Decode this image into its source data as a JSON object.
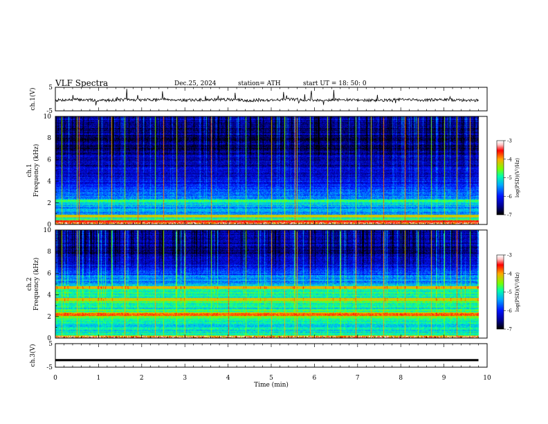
{
  "header": {
    "title": "VLF  Spectra",
    "date": "Dec.25, 2024",
    "station": "station= ATH",
    "start": "start  UT  =   18: 50: 0"
  },
  "colors": {
    "background": "#ffffff",
    "axis": "#000000",
    "trace": "#000000",
    "colormap": [
      "#000000",
      "#0000aa",
      "#0000ff",
      "#00aaff",
      "#00ffaa",
      "#aaff00",
      "#ffaa00",
      "#ff0000",
      "#ffdddd",
      "#ffffff"
    ]
  },
  "chart_data": [
    {
      "type": "line",
      "name": "ch1-voltage",
      "ylabel": "ch.1(V)",
      "ylim": [
        -5,
        5
      ],
      "yticks": [
        "5",
        "-5"
      ],
      "xlim": [
        0,
        10
      ],
      "x": [
        0,
        0.5,
        1,
        1.5,
        2,
        2.5,
        3,
        3.5,
        4,
        4.5,
        5,
        5.5,
        6,
        6.5,
        7,
        7.5,
        8,
        8.5,
        9,
        9.5,
        9.8
      ],
      "y": [
        -0.5,
        -0.2,
        -0.6,
        -0.3,
        -0.4,
        0.0,
        -0.5,
        -0.3,
        -0.2,
        -0.6,
        -0.4,
        -0.1,
        -0.5,
        -0.3,
        -0.4,
        -0.6,
        -0.2,
        -0.4,
        -0.3,
        -0.5,
        -0.6
      ]
    },
    {
      "type": "heatmap",
      "name": "ch1-spectrogram",
      "ylabel": "ch.1\nFrequency (kHz)",
      "ylim": [
        0,
        10
      ],
      "yticks": [
        "0",
        "2",
        "4",
        "6",
        "8",
        "10"
      ],
      "xlim": [
        0,
        10
      ],
      "data_xmax": 9.8,
      "colorbar": {
        "label": "log(PSD)(V²/Hz)",
        "range": [
          -7,
          -3
        ],
        "ticks": [
          "-3",
          "-4",
          "-5",
          "-6",
          "-7"
        ]
      },
      "freq_profile_kHz": [
        0,
        0.5,
        1,
        1.5,
        2,
        2.2,
        2.5,
        3,
        3.5,
        4,
        4.5,
        5,
        6,
        7,
        8,
        9,
        10
      ],
      "freq_profile_logpsd": [
        -3.8,
        -4.8,
        -5.4,
        -5.6,
        -5.0,
        -4.9,
        -5.6,
        -5.8,
        -5.9,
        -6.1,
        -6.3,
        -6.2,
        -6.4,
        -6.6,
        -6.7,
        -6.5,
        -6.4
      ],
      "bands_kHz": [
        {
          "f": 2.2,
          "v": -4.9
        },
        {
          "f": 0.8,
          "v": -4.2
        },
        {
          "f": 0.3,
          "v": -3.6
        }
      ],
      "sferics_min": [
        0.15,
        0.5,
        0.55,
        1.0,
        1.3,
        1.6,
        1.9,
        2.3,
        2.5,
        2.8,
        3.0,
        3.6,
        4.0,
        4.4,
        4.7,
        5.0,
        5.3,
        5.55,
        5.6,
        5.9,
        6.3,
        6.6,
        6.95,
        7.3,
        7.6,
        8.1,
        8.4,
        8.7,
        9.0,
        9.3,
        9.6
      ]
    },
    {
      "type": "heatmap",
      "name": "ch2-spectrogram",
      "ylabel": "ch.2\nFrequency (kHz)",
      "ylim": [
        0,
        10
      ],
      "yticks": [
        "0",
        "2",
        "4",
        "6",
        "8",
        "10"
      ],
      "xlim": [
        0,
        10
      ],
      "data_xmax": 9.8,
      "colorbar": {
        "label": "log(PSD)(V²/Hz)",
        "range": [
          -7,
          -3
        ],
        "ticks": [
          "-3",
          "-4",
          "-5",
          "-6",
          "-7"
        ]
      },
      "freq_profile_kHz": [
        0,
        0.5,
        1,
        1.5,
        2,
        2.2,
        2.5,
        3,
        3.5,
        4,
        4.5,
        4.7,
        5,
        6,
        7,
        8,
        9,
        10
      ],
      "freq_profile_logpsd": [
        -4.2,
        -5.0,
        -5.2,
        -5.1,
        -4.4,
        -4.0,
        -4.8,
        -5.1,
        -4.6,
        -5.1,
        -4.8,
        -4.3,
        -5.4,
        -5.8,
        -6.2,
        -6.5,
        -6.4,
        -6.3
      ],
      "bands_kHz": [
        {
          "f": 2.2,
          "v": -3.8
        },
        {
          "f": 3.6,
          "v": -4.2
        },
        {
          "f": 4.7,
          "v": -4.1
        }
      ],
      "sferics_min": [
        0.15,
        0.5,
        0.55,
        1.0,
        1.3,
        1.6,
        1.9,
        2.3,
        2.5,
        2.8,
        3.0,
        3.6,
        4.0,
        4.4,
        4.7,
        5.0,
        5.3,
        5.55,
        5.6,
        5.9,
        6.3,
        6.6,
        6.95,
        7.3,
        7.6,
        8.1,
        8.4,
        8.7,
        9.0,
        9.3,
        9.6
      ]
    },
    {
      "type": "line",
      "name": "ch3-voltage",
      "ylabel": "ch.3(V)",
      "ylim": [
        -5,
        5
      ],
      "yticks": [
        "5",
        "-5"
      ],
      "xlim": [
        0,
        10
      ],
      "x": [
        0,
        9.8
      ],
      "y": [
        -2.0,
        -2.0
      ]
    }
  ],
  "xaxis": {
    "label": "Time  (min)",
    "ticks": [
      "0",
      "1",
      "2",
      "3",
      "4",
      "5",
      "6",
      "7",
      "8",
      "9",
      "10"
    ]
  }
}
